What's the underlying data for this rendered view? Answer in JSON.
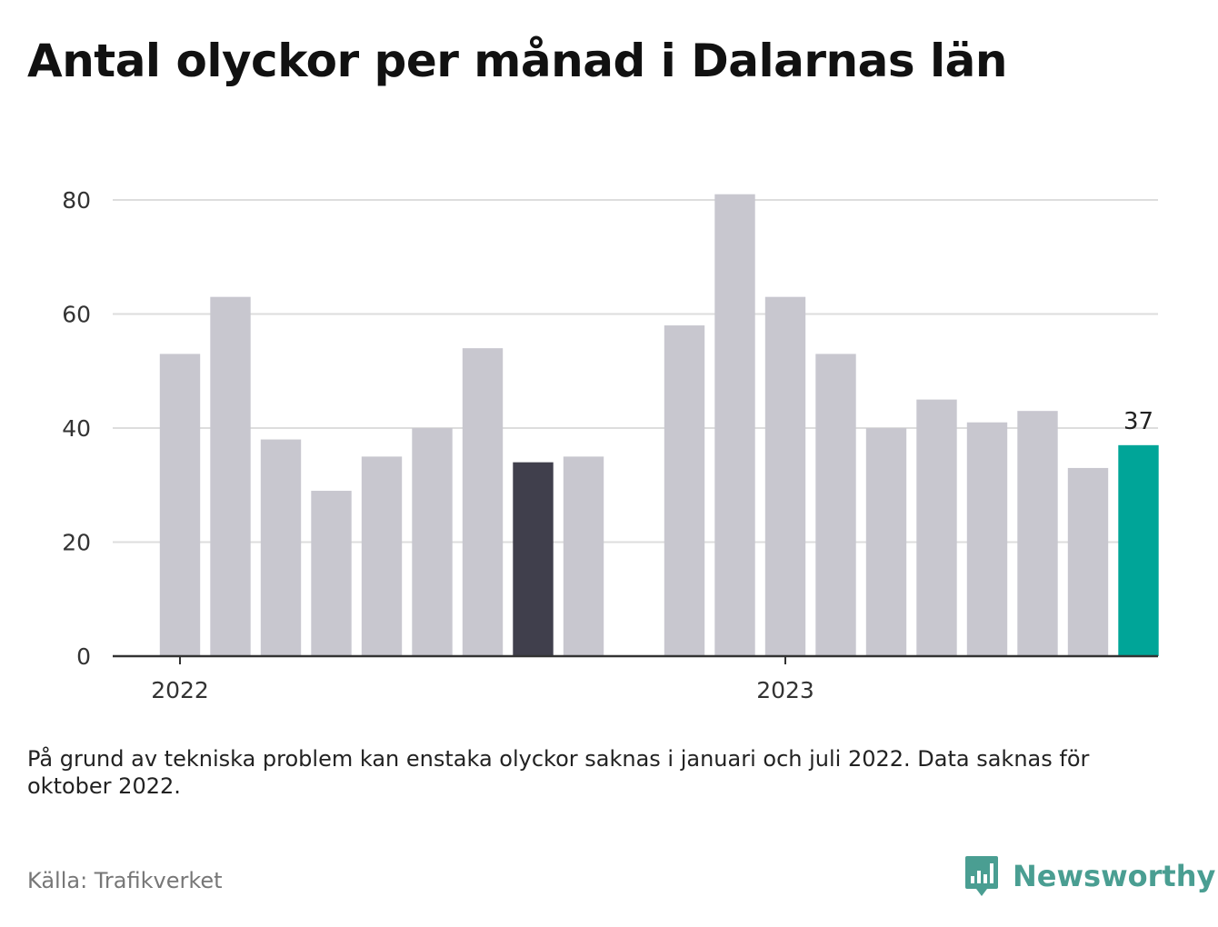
{
  "title": "Antal olyckor per månad i Dalarnas län",
  "note": "På grund av tekniska problem kan enstaka olyckor saknas i januari och juli 2022. Data saknas för oktober 2022.",
  "source": "Källa: Trafikverket",
  "brand": {
    "name": "Newsworthy",
    "icon": "newsworthy-logo-icon",
    "color": "#4a9e92"
  },
  "chart_data": {
    "type": "bar",
    "x": [
      "2022-01",
      "2022-02",
      "2022-03",
      "2022-04",
      "2022-05",
      "2022-06",
      "2022-07",
      "2022-08",
      "2022-09",
      "2022-10",
      "2022-11",
      "2022-12",
      "2023-01",
      "2023-02",
      "2023-03",
      "2023-04",
      "2023-05",
      "2023-06",
      "2023-07",
      "2023-08"
    ],
    "values": [
      53,
      63,
      38,
      29,
      35,
      40,
      54,
      34,
      35,
      null,
      58,
      81,
      63,
      53,
      40,
      45,
      41,
      43,
      33,
      37
    ],
    "year_labels": [
      {
        "label": "2022",
        "at": "2022-01"
      },
      {
        "label": "2023",
        "at": "2023-01"
      }
    ],
    "ylim": [
      0,
      80
    ],
    "yticks": [
      0,
      20,
      40,
      60,
      80
    ],
    "grid": true,
    "highlight": {
      "x": "2023-08",
      "label": "37"
    },
    "colors": {
      "default": "#c8c7cf",
      "comparison": "#403f4c",
      "highlight": "#00a598"
    },
    "comparison_x": "2022-08"
  }
}
